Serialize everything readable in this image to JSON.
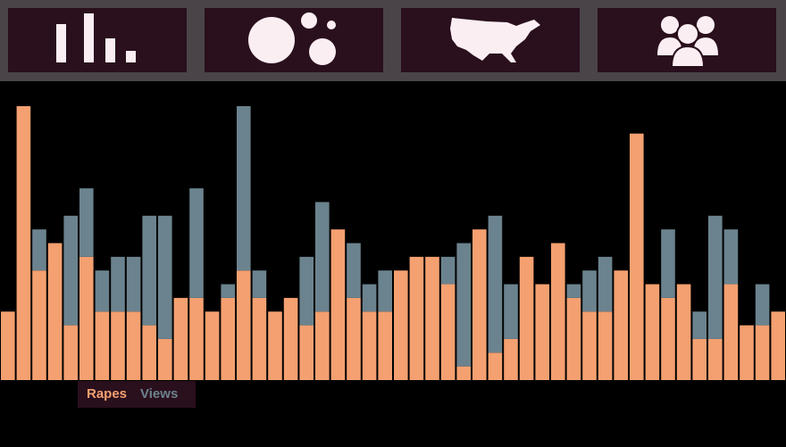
{
  "chart_data": {
    "type": "bar",
    "stacked": true,
    "series": [
      {
        "name": "Rapes",
        "color": "#f4a070",
        "values": [
          5,
          20,
          8,
          10,
          4,
          9,
          5,
          5,
          5,
          4,
          3,
          6,
          6,
          5,
          6,
          8,
          6,
          5,
          6,
          4,
          5,
          11,
          6,
          5,
          5,
          8,
          9,
          9,
          7,
          1,
          11,
          2,
          3,
          9,
          7,
          10,
          6,
          5,
          5,
          8,
          18,
          7,
          6,
          7,
          3,
          3,
          7,
          4,
          4,
          5
        ]
      },
      {
        "name": "Views",
        "color": "#6b838e",
        "values": [
          0,
          0,
          3,
          0,
          8,
          5,
          3,
          4,
          4,
          8,
          9,
          0,
          8,
          0,
          1,
          12,
          2,
          0,
          0,
          5,
          8,
          0,
          4,
          2,
          3,
          0,
          0,
          0,
          2,
          9,
          0,
          10,
          4,
          0,
          0,
          0,
          1,
          3,
          4,
          0,
          0,
          0,
          5,
          0,
          2,
          9,
          4,
          0,
          3,
          0
        ]
      }
    ],
    "ylim": [
      0,
      20
    ]
  }
}
